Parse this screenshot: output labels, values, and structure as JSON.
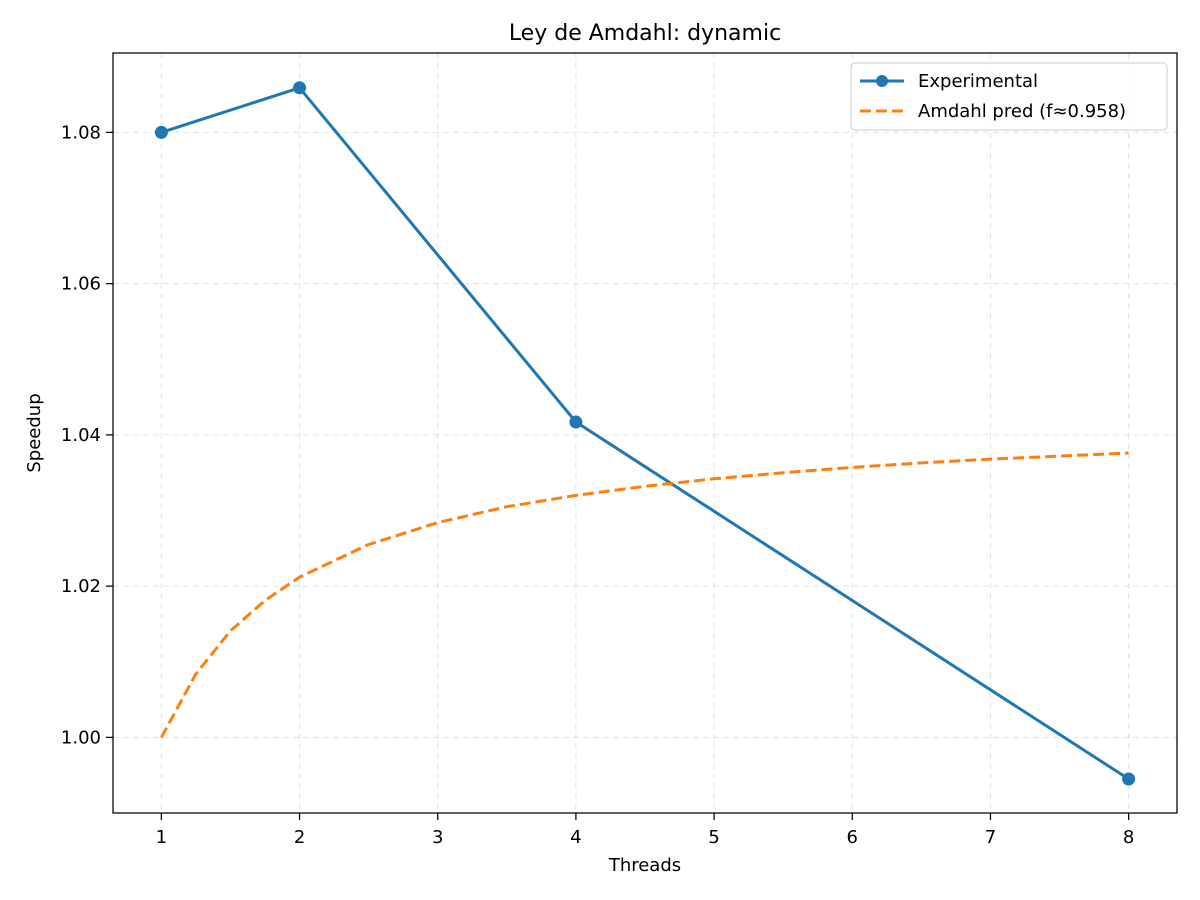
{
  "chart_data": {
    "type": "line",
    "title": "Ley de Amdahl: dynamic",
    "xlabel": "Threads",
    "ylabel": "Speedup",
    "xlim": [
      0.65,
      8.35
    ],
    "ylim": [
      0.99,
      1.0905
    ],
    "x_ticks": [
      1,
      2,
      3,
      4,
      5,
      6,
      7,
      8
    ],
    "y_ticks": [
      1.0,
      1.02,
      1.04,
      1.06,
      1.08
    ],
    "grid": true,
    "legend_position": "top-right",
    "series": [
      {
        "name": "Experimental",
        "color": "#1f77b4",
        "style": "solid",
        "markers": true,
        "x": [
          1,
          2,
          4,
          8
        ],
        "y": [
          1.08,
          1.0859,
          1.0417,
          0.9945
        ]
      },
      {
        "name": "Amdahl pred (f≈0.958)",
        "color": "#ff7f0e",
        "style": "dashed",
        "markers": false,
        "x": [
          1.0,
          1.25,
          1.5,
          1.75,
          2.0,
          2.5,
          3.0,
          3.5,
          4.0,
          4.5,
          5.0,
          5.5,
          6.0,
          6.5,
          7.0,
          7.5,
          8.0
        ],
        "y": [
          1.0,
          1.0084,
          1.0141,
          1.0181,
          1.0212,
          1.0255,
          1.0284,
          1.0305,
          1.032,
          1.0332,
          1.0342,
          1.035,
          1.0357,
          1.0363,
          1.0368,
          1.0372,
          1.0376
        ]
      }
    ]
  }
}
